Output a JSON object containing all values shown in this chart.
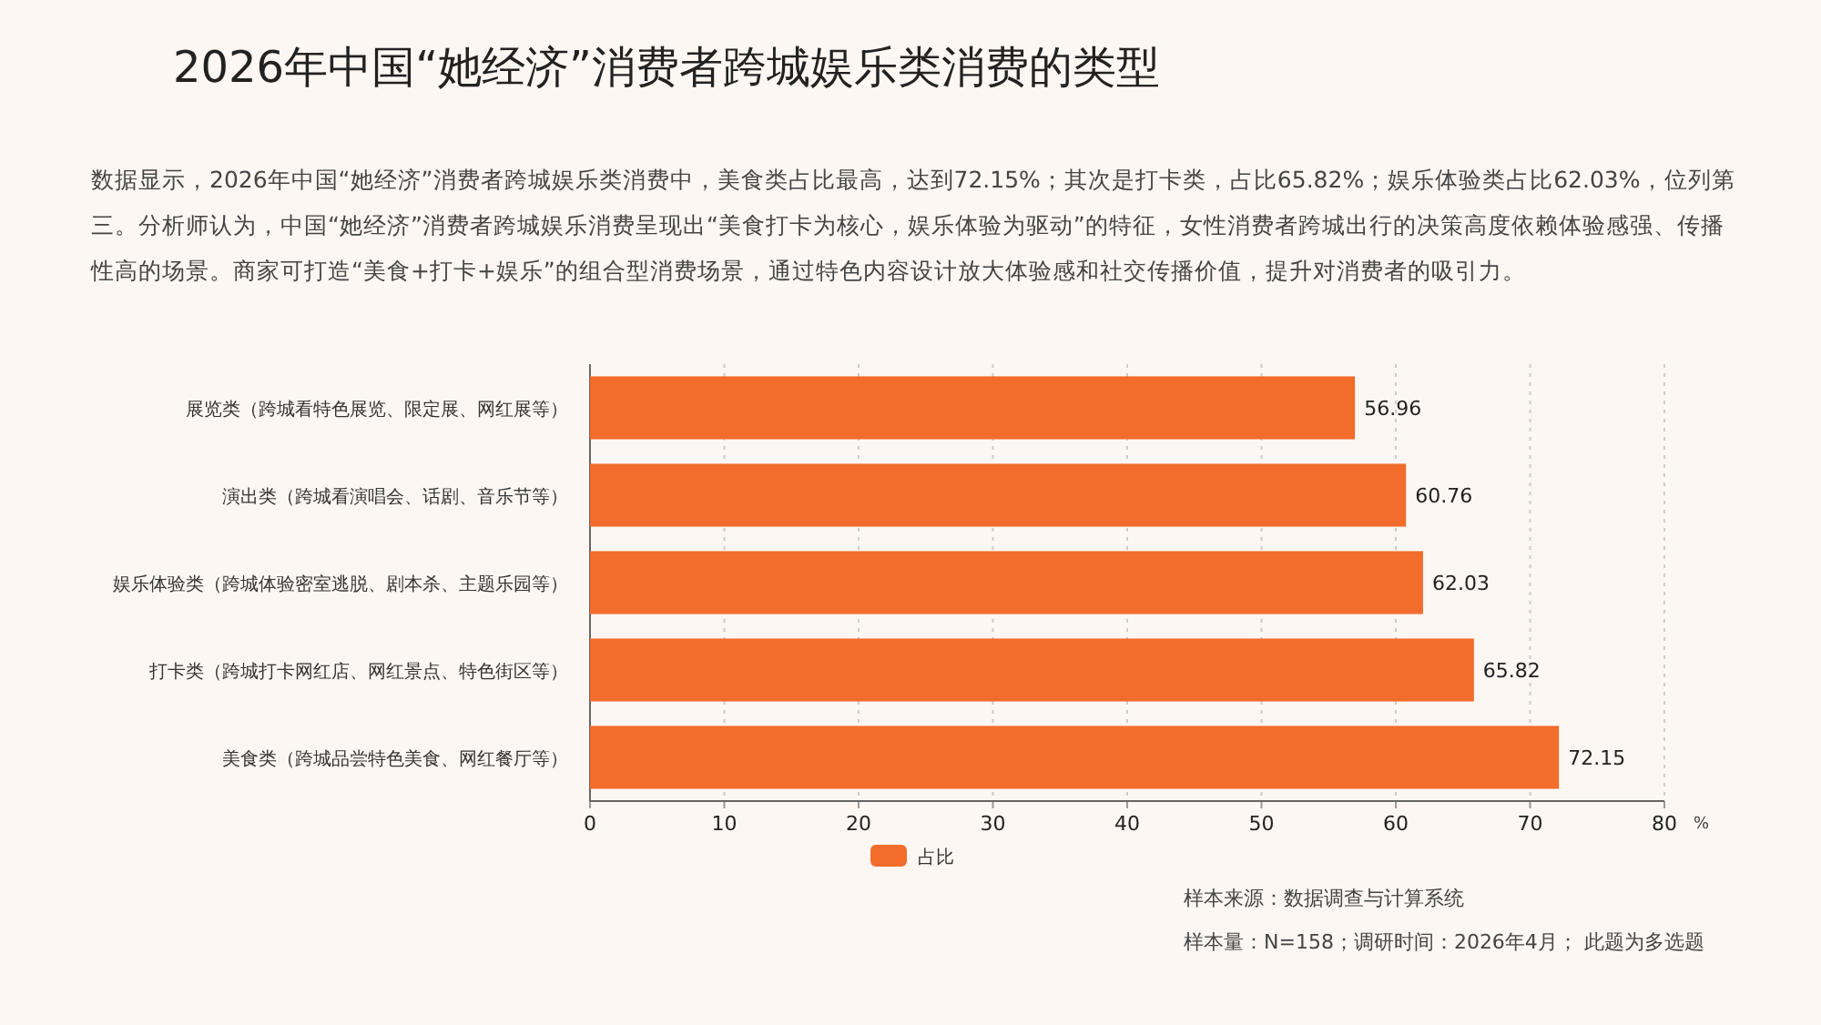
{
  "chart_data": {
    "type": "bar",
    "orientation": "horizontal",
    "title": "2026年中国“她经济”消费者跨城娱乐类消费的类型",
    "subtitle": "数据显示，2026年中国“她经济”消费者跨城娱乐类消费中，美食类占比最高，达到72.15%；其次是打卡类，占比65.82%；娱乐体验类占比62.03%，位列第三。分析师认为，中国“她经济”消费者跨城娱乐消费呈现出“美食打卡为核心，娱乐体验为驱动”的特征，女性消费者跨城出行的决策高度依赖体验感强、传播性高的场景。商家可打造“美食+打卡+娱乐”的组合型消费场景，通过特色内容设计放大体验感和社交传播价值，提升对消费者的吸引力。",
    "categories": [
      "展览类（跨城看特色展览、限定展、网红展等）",
      "演出类（跨城看演唱会、话剧、音乐节等）",
      "娱乐体验类（跨城体验密室逃脱、剧本杀、主题乐园等）",
      "打卡类（跨城打卡网红店、网红景点、特色街区等）",
      "美食类（跨城品尝特色美食、网红餐厅等）"
    ],
    "series": [
      {
        "name": "占比",
        "color": "#f26c2c",
        "values": [
          56.96,
          60.76,
          62.03,
          65.82,
          72.15
        ]
      }
    ],
    "xlabel": "%",
    "xlim": [
      0,
      80
    ],
    "xticks": [
      0,
      10,
      20,
      30,
      40,
      50,
      60,
      70,
      80
    ],
    "grid": "x",
    "legend": "bottom",
    "data_labels": true,
    "annotations": [
      "样本来源：数据调查与计算系统",
      "样本量：N=158；调研时间：2026年4月； 此题为多选题"
    ]
  }
}
